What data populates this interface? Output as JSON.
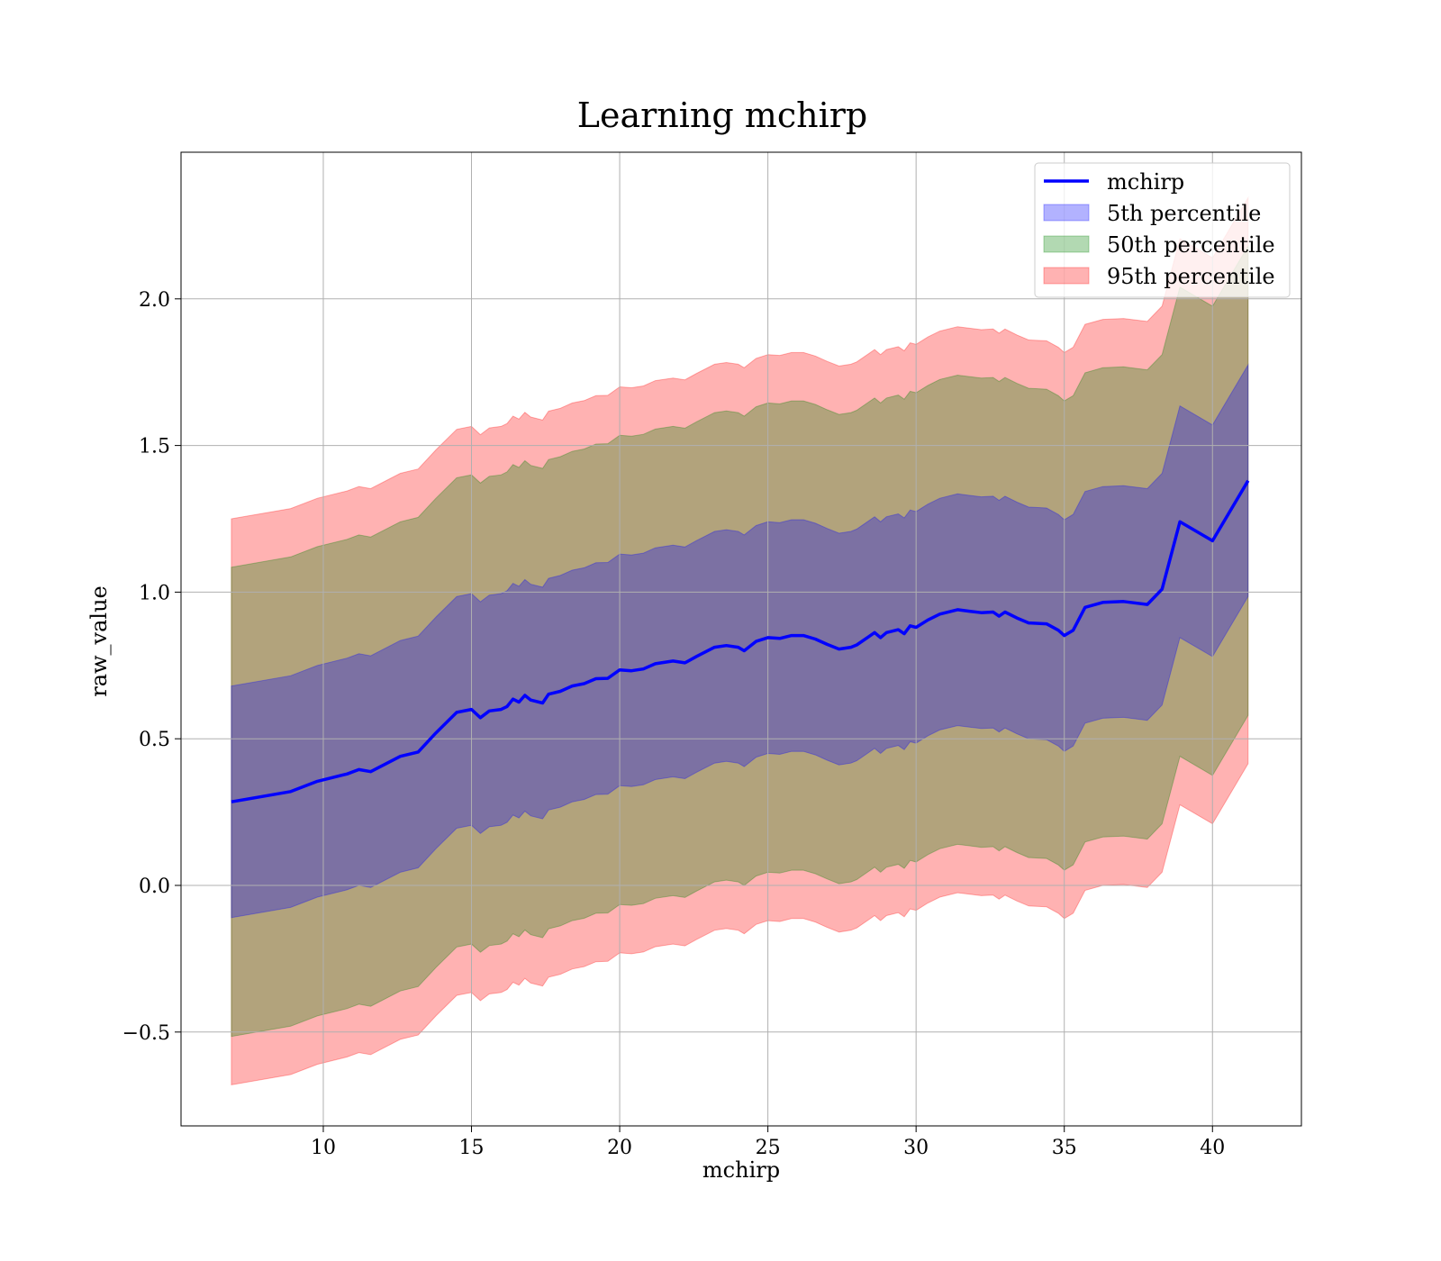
{
  "chart_data": {
    "type": "area",
    "title": "Learning mchirp",
    "xlabel": "mchirp",
    "ylabel": "raw_value",
    "xlim": [
      5.2,
      43.0
    ],
    "ylim": [
      -0.82,
      2.5
    ],
    "x_ticks": [
      10,
      15,
      20,
      25,
      30,
      35,
      40
    ],
    "y_ticks": [
      -0.5,
      0.0,
      0.5,
      1.0,
      1.5,
      2.0
    ],
    "x_tick_labels": [
      "10",
      "15",
      "20",
      "25",
      "30",
      "35",
      "40"
    ],
    "y_tick_labels": [
      "−0.5",
      "0.0",
      "0.5",
      "1.0",
      "1.5",
      "2.0"
    ],
    "grid": true,
    "legend_position": "upper-right",
    "legend": [
      {
        "label": "mchirp",
        "kind": "line",
        "color": "#0000ff"
      },
      {
        "label": "5th percentile",
        "kind": "patch",
        "color": "#0000ff"
      },
      {
        "label": "50th percentile",
        "kind": "patch",
        "color": "#008000"
      },
      {
        "label": "95th percentile",
        "kind": "patch",
        "color": "#ff0000"
      }
    ],
    "x": [
      6.9,
      8.9,
      9.8,
      10.8,
      11.2,
      11.6,
      12.6,
      13.2,
      13.8,
      14.5,
      15.0,
      15.3,
      15.6,
      16.0,
      16.2,
      16.4,
      16.6,
      16.8,
      17.0,
      17.4,
      17.6,
      18.0,
      18.4,
      18.8,
      19.2,
      19.6,
      20.0,
      20.4,
      20.8,
      21.2,
      21.8,
      22.2,
      22.6,
      23.2,
      23.6,
      24.0,
      24.2,
      24.6,
      25.0,
      25.4,
      25.8,
      26.2,
      26.6,
      27.0,
      27.4,
      27.8,
      28.0,
      28.4,
      28.6,
      28.8,
      29.0,
      29.4,
      29.6,
      29.8,
      30.0,
      30.4,
      30.8,
      31.4,
      31.8,
      32.2,
      32.6,
      32.8,
      33.0,
      33.4,
      33.8,
      34.4,
      34.8,
      35.0,
      35.3,
      35.7,
      36.3,
      37.0,
      37.8,
      38.3,
      38.9,
      40.0,
      41.2
    ],
    "series": [
      {
        "name": "mchirp",
        "type": "line",
        "color": "#0000ff",
        "values": [
          0.285,
          0.32,
          0.355,
          0.38,
          0.395,
          0.388,
          0.44,
          0.455,
          0.52,
          0.59,
          0.6,
          0.572,
          0.595,
          0.6,
          0.61,
          0.635,
          0.625,
          0.648,
          0.632,
          0.622,
          0.652,
          0.662,
          0.68,
          0.688,
          0.705,
          0.706,
          0.735,
          0.732,
          0.738,
          0.756,
          0.765,
          0.759,
          0.781,
          0.812,
          0.818,
          0.812,
          0.8,
          0.832,
          0.845,
          0.842,
          0.852,
          0.852,
          0.84,
          0.822,
          0.806,
          0.812,
          0.82,
          0.848,
          0.862,
          0.845,
          0.862,
          0.872,
          0.858,
          0.885,
          0.88,
          0.905,
          0.925,
          0.94,
          0.935,
          0.93,
          0.932,
          0.918,
          0.932,
          0.912,
          0.895,
          0.892,
          0.87,
          0.852,
          0.87,
          0.948,
          0.965,
          0.968,
          0.958,
          1.01,
          1.24,
          1.175,
          1.38
        ]
      },
      {
        "name": "5th percentile",
        "type": "band",
        "color": "#0000ff",
        "half_width": 0.395
      },
      {
        "name": "50th percentile",
        "type": "band",
        "color": "#008000",
        "half_width": 0.8
      },
      {
        "name": "95th percentile",
        "type": "band",
        "color": "#ff0000",
        "half_width": 0.965
      }
    ]
  }
}
